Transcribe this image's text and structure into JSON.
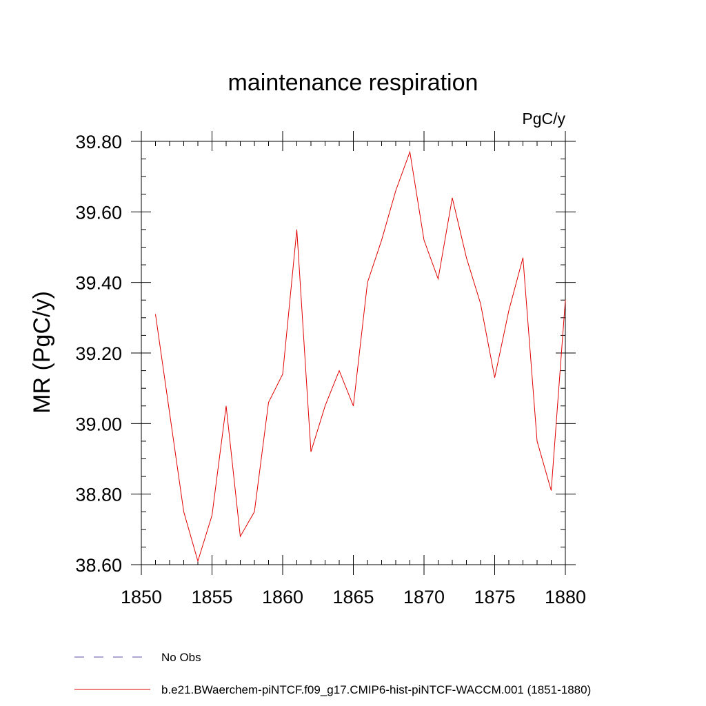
{
  "chart_data": {
    "type": "line",
    "title": "maintenance respiration",
    "units": "PgC/y",
    "ylabel": "MR  (PgC/y)",
    "xlabel": "",
    "xlim": [
      1850,
      1880
    ],
    "ylim": [
      38.6,
      39.8
    ],
    "x_ticks": [
      1850,
      1855,
      1860,
      1865,
      1870,
      1875,
      1880
    ],
    "x_tick_labels": [
      "1850",
      "1855",
      "1860",
      "1865",
      "1870",
      "1875",
      "1880"
    ],
    "y_ticks": [
      38.6,
      38.8,
      39.0,
      39.2,
      39.4,
      39.6,
      39.8
    ],
    "y_tick_labels": [
      "38.60",
      "38.80",
      "39.00",
      "39.20",
      "39.40",
      "39.60",
      "39.80"
    ],
    "grid": false,
    "series": [
      {
        "name": "b.e21.BWaerchem-piNTCF.f09_g17.CMIP6-hist-piNTCF-WACCM.001 (1851-1880)",
        "color": "#e00000",
        "x": [
          1851,
          1852,
          1853,
          1854,
          1855,
          1856,
          1857,
          1858,
          1859,
          1860,
          1861,
          1862,
          1863,
          1864,
          1865,
          1866,
          1867,
          1868,
          1869,
          1870,
          1871,
          1872,
          1873,
          1874,
          1875,
          1876,
          1877,
          1878,
          1879,
          1880
        ],
        "values": [
          39.31,
          39.03,
          38.75,
          38.61,
          38.74,
          39.05,
          38.68,
          38.75,
          39.06,
          39.14,
          39.55,
          38.92,
          39.05,
          39.15,
          39.05,
          39.4,
          39.52,
          39.66,
          39.77,
          39.52,
          39.41,
          39.64,
          39.47,
          39.34,
          39.13,
          39.32,
          39.47,
          38.95,
          38.81,
          39.35
        ]
      }
    ],
    "legend": {
      "placement": "bottom-left",
      "entries": [
        {
          "label": "No Obs",
          "color": "#5a4fa8",
          "style": "dashed"
        },
        {
          "label": "b.e21.BWaerchem-piNTCF.f09_g17.CMIP6-hist-piNTCF-WACCM.001 (1851-1880)",
          "color": "#e00000",
          "style": "solid"
        }
      ]
    }
  }
}
